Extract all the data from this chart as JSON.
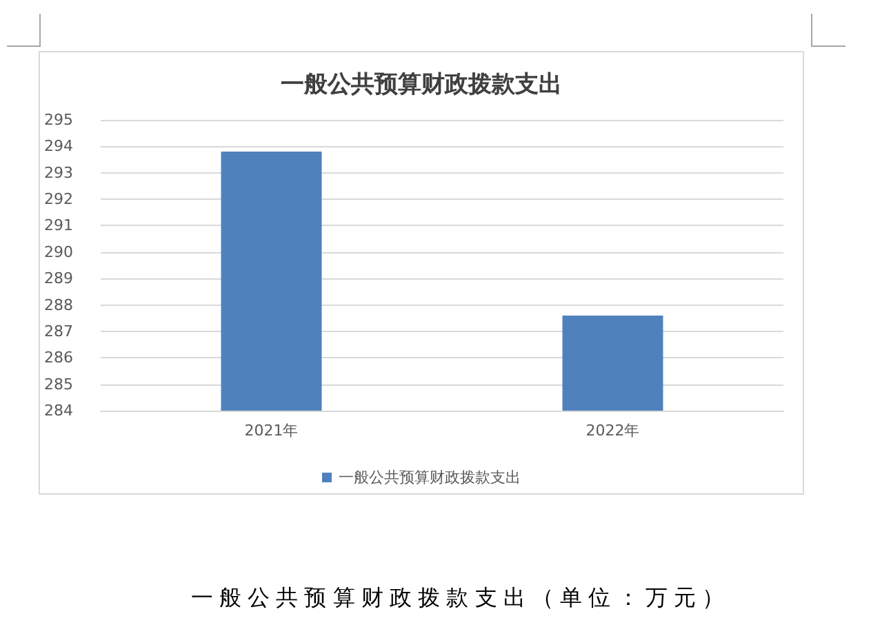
{
  "chart_data": {
    "type": "bar",
    "title": "一般公共预算财政拨款支出",
    "categories": [
      "2021年",
      "2022年"
    ],
    "series": [
      {
        "name": "一般公共预算财政拨款支出",
        "color": "#4f81bd",
        "values": [
          293.8,
          287.6
        ]
      }
    ],
    "ylim": [
      284,
      295
    ],
    "yticks": [
      284,
      285,
      286,
      287,
      288,
      289,
      290,
      291,
      292,
      293,
      294,
      295
    ],
    "grid": "y",
    "legend": "bottom",
    "annotations": [
      "一般公共预算财政拨款支出（单位：万元）"
    ]
  }
}
